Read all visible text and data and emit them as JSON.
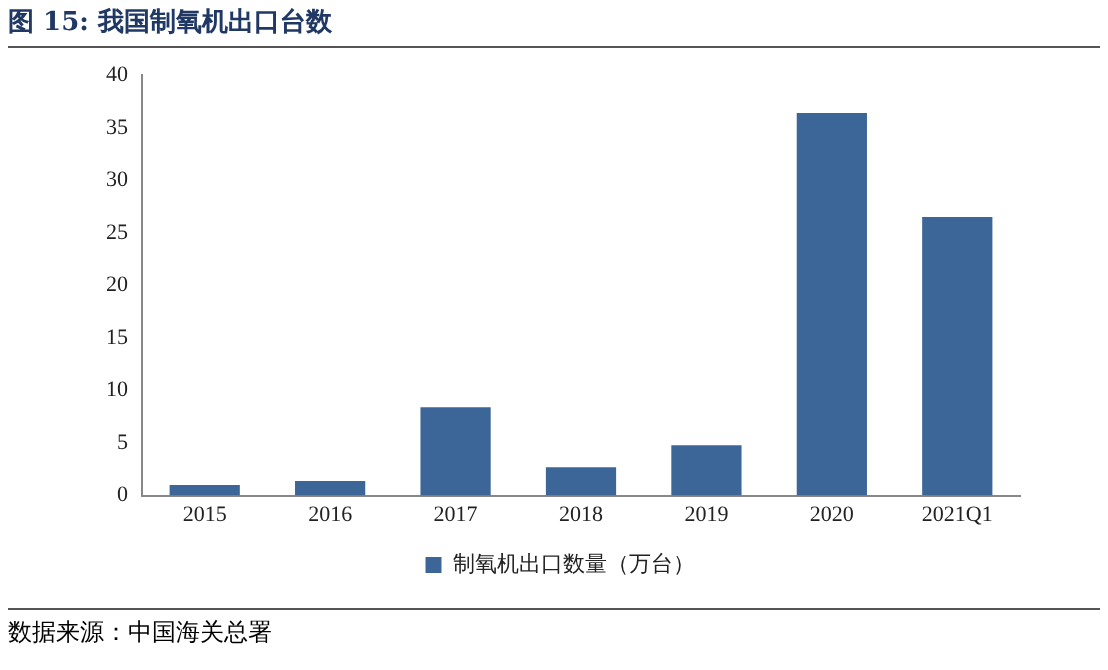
{
  "chart_data": {
    "type": "bar",
    "title": "图 15: 我国制氧机出口台数",
    "categories": [
      "2015",
      "2016",
      "2017",
      "2018",
      "2019",
      "2020",
      "2021Q1"
    ],
    "series": [
      {
        "name": "制氧机出口数量（万台）",
        "color": "#3d6698",
        "values": [
          1.0,
          1.4,
          8.4,
          2.7,
          4.8,
          36.4,
          26.5
        ]
      }
    ],
    "ylim": [
      0,
      40
    ],
    "yticks": [
      0,
      5,
      10,
      15,
      20,
      25,
      30,
      35,
      40
    ],
    "grid": false,
    "legend": "bottom",
    "annotations": [
      "数据来源：中国海关总署"
    ]
  }
}
